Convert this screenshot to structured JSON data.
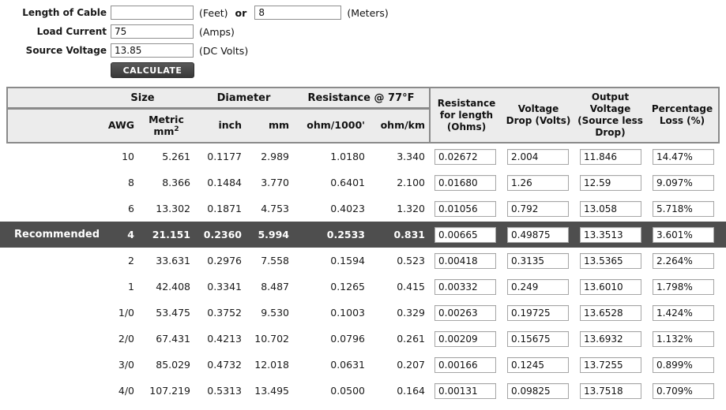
{
  "form": {
    "length": {
      "label": "Length of Cable",
      "feet_value": "",
      "feet_unit": "(Feet)",
      "or_label": "or",
      "meters_value": "8",
      "meters_unit": "(Meters)"
    },
    "load_current": {
      "label": "Load Current",
      "value": "75",
      "unit": "(Amps)"
    },
    "source_voltage": {
      "label": "Source Voltage",
      "value": "13.85",
      "unit": "(DC Volts)"
    },
    "calculate_label": "CALCULATE"
  },
  "table": {
    "group_headers": {
      "size": "Size",
      "diameter": "Diameter",
      "resistance": "Resistance @ 77°F"
    },
    "sub_headers": {
      "awg": "AWG",
      "metric_line1": "Metric",
      "metric_line2": "mm",
      "metric_sup": "2",
      "inch": "inch",
      "mm": "mm",
      "ohm_per_1000ft": "ohm/1000'",
      "ohm_per_km": "ohm/km"
    },
    "result_headers": [
      "Resistance for length (Ohms)",
      "Voltage Drop (Volts)",
      "Output Voltage (Source less Drop)",
      "Percentage Loss (%)"
    ],
    "recommended_label": "Recommended",
    "rows": [
      {
        "recommended": false,
        "awg": "10",
        "metric": "5.261",
        "inch": "0.1177",
        "mm": "2.989",
        "ohm_per_1000ft": "1.0180",
        "ohm_per_km": "3.340",
        "resistance_ohms": "0.02672",
        "voltage_drop": "2.004",
        "output_voltage": "11.846",
        "percentage_loss": "14.47%"
      },
      {
        "recommended": false,
        "awg": "8",
        "metric": "8.366",
        "inch": "0.1484",
        "mm": "3.770",
        "ohm_per_1000ft": "0.6401",
        "ohm_per_km": "2.100",
        "resistance_ohms": "0.01680",
        "voltage_drop": "1.26",
        "output_voltage": "12.59",
        "percentage_loss": "9.097%"
      },
      {
        "recommended": false,
        "awg": "6",
        "metric": "13.302",
        "inch": "0.1871",
        "mm": "4.753",
        "ohm_per_1000ft": "0.4023",
        "ohm_per_km": "1.320",
        "resistance_ohms": "0.01056",
        "voltage_drop": "0.792",
        "output_voltage": "13.058",
        "percentage_loss": "5.718%"
      },
      {
        "recommended": true,
        "awg": "4",
        "metric": "21.151",
        "inch": "0.2360",
        "mm": "5.994",
        "ohm_per_1000ft": "0.2533",
        "ohm_per_km": "0.831",
        "resistance_ohms": "0.00665",
        "voltage_drop": "0.49875",
        "output_voltage": "13.3513",
        "percentage_loss": "3.601%"
      },
      {
        "recommended": false,
        "awg": "2",
        "metric": "33.631",
        "inch": "0.2976",
        "mm": "7.558",
        "ohm_per_1000ft": "0.1594",
        "ohm_per_km": "0.523",
        "resistance_ohms": "0.00418",
        "voltage_drop": "0.3135",
        "output_voltage": "13.5365",
        "percentage_loss": "2.264%"
      },
      {
        "recommended": false,
        "awg": "1",
        "metric": "42.408",
        "inch": "0.3341",
        "mm": "8.487",
        "ohm_per_1000ft": "0.1265",
        "ohm_per_km": "0.415",
        "resistance_ohms": "0.00332",
        "voltage_drop": "0.249",
        "output_voltage": "13.6010",
        "percentage_loss": "1.798%"
      },
      {
        "recommended": false,
        "awg": "1/0",
        "metric": "53.475",
        "inch": "0.3752",
        "mm": "9.530",
        "ohm_per_1000ft": "0.1003",
        "ohm_per_km": "0.329",
        "resistance_ohms": "0.00263",
        "voltage_drop": "0.19725",
        "output_voltage": "13.6528",
        "percentage_loss": "1.424%"
      },
      {
        "recommended": false,
        "awg": "2/0",
        "metric": "67.431",
        "inch": "0.4213",
        "mm": "10.702",
        "ohm_per_1000ft": "0.0796",
        "ohm_per_km": "0.261",
        "resistance_ohms": "0.00209",
        "voltage_drop": "0.15675",
        "output_voltage": "13.6932",
        "percentage_loss": "1.132%"
      },
      {
        "recommended": false,
        "awg": "3/0",
        "metric": "85.029",
        "inch": "0.4732",
        "mm": "12.018",
        "ohm_per_1000ft": "0.0631",
        "ohm_per_km": "0.207",
        "resistance_ohms": "0.00166",
        "voltage_drop": "0.1245",
        "output_voltage": "13.7255",
        "percentage_loss": "0.899%"
      },
      {
        "recommended": false,
        "awg": "4/0",
        "metric": "107.219",
        "inch": "0.5313",
        "mm": "13.495",
        "ohm_per_1000ft": "0.0500",
        "ohm_per_km": "0.164",
        "resistance_ohms": "0.00131",
        "voltage_drop": "0.09825",
        "output_voltage": "13.7518",
        "percentage_loss": "0.709%"
      }
    ]
  },
  "colors": {
    "header_bg": "#ececec",
    "header_border": "#8a8a8a",
    "recommended_bg": "#4e4e4e",
    "button_bg": "#3f3f3f"
  }
}
